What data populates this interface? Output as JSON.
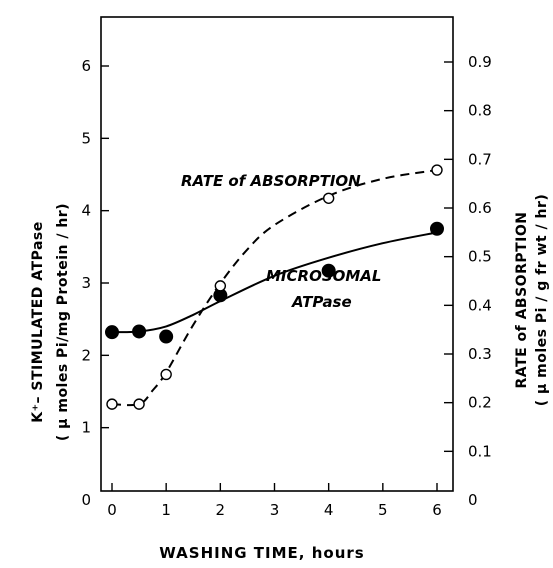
{
  "chart_data": {
    "type": "line",
    "xlabel": "WASHING TIME, hours",
    "ylabel_left": [
      "K⁺–  STIMULATED ATPase",
      "( μ moles Pi/mg Protein / hr)"
    ],
    "ylabel_right": [
      "RATE of ABSORPTION",
      "( μ moles Pi / g fr wt / hr)"
    ],
    "xlim": [
      -0.1,
      6.7
    ],
    "ylim_left": [
      0,
      6.7
    ],
    "ylim_right": [
      0,
      1.0
    ],
    "x_ticks": [
      "0",
      "1",
      "2",
      "3",
      "4",
      "5",
      "6"
    ],
    "y_left_ticks": [
      "0",
      "1",
      "2",
      "3",
      "4",
      "5",
      "6"
    ],
    "y_right_ticks": [
      "0",
      "0.1",
      "0.2",
      "0.3",
      "0.4",
      "0.5",
      "0.6",
      "0.7",
      "0.8",
      "0.9"
    ],
    "series": [
      {
        "name": "MICROSOMAL ATPase",
        "axis": "left",
        "marker": "filled-circle",
        "line": "solid",
        "x": [
          0,
          0.5,
          1,
          2,
          4,
          6
        ],
        "y": [
          2.32,
          2.33,
          2.26,
          2.83,
          3.17,
          3.75
        ],
        "curve_x": [
          0,
          0.5,
          1,
          1.5,
          2,
          3,
          4,
          5,
          6
        ],
        "curve_y": [
          2.32,
          2.33,
          2.4,
          2.56,
          2.75,
          3.1,
          3.35,
          3.55,
          3.7
        ]
      },
      {
        "name": "RATE of ABSORPTION",
        "axis": "right",
        "marker": "open-circle",
        "line": "dashed",
        "x": [
          0,
          0.5,
          1,
          2,
          4,
          6
        ],
        "y": [
          0.197,
          0.197,
          0.258,
          0.44,
          0.62,
          0.678
        ],
        "curve_x": [
          0,
          0.5,
          0.75,
          1,
          1.5,
          2,
          2.5,
          3,
          4,
          5,
          6
        ],
        "curve_y": [
          0.197,
          0.197,
          0.225,
          0.262,
          0.36,
          0.445,
          0.515,
          0.565,
          0.625,
          0.66,
          0.678
        ]
      }
    ],
    "annotations": [
      "RATE of ABSORPTION",
      "MICROSOMAL",
      "ATPase"
    ]
  }
}
